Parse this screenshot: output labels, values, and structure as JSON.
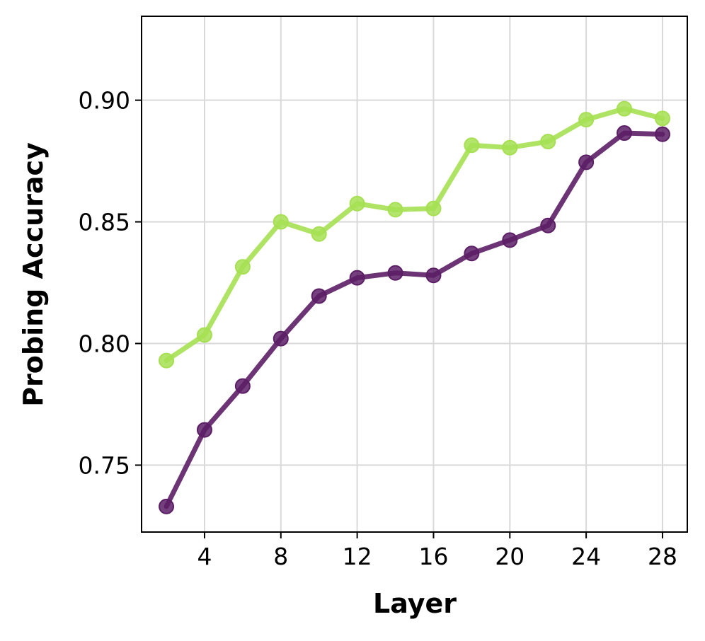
{
  "chart_data": {
    "type": "line",
    "title": "",
    "xlabel": "Layer",
    "ylabel": "Probing Accuracy",
    "xlim": [
      0.7,
      29.3
    ],
    "ylim": [
      0.7225,
      0.9345
    ],
    "xticks": [
      4,
      8,
      12,
      16,
      20,
      24,
      28
    ],
    "xtick_labels": [
      "4",
      "8",
      "12",
      "16",
      "20",
      "24",
      "28"
    ],
    "yticks": [
      0.75,
      0.8,
      0.85,
      0.9
    ],
    "ytick_labels": [
      "0.75",
      "0.80",
      "0.85",
      "0.90"
    ],
    "grid": true,
    "legend": "none",
    "x": [
      2,
      4,
      6,
      8,
      10,
      12,
      14,
      16,
      18,
      20,
      22,
      24,
      26,
      28
    ],
    "series": [
      {
        "color": "#a6e052",
        "values": [
          0.793,
          0.8035,
          0.8315,
          0.85,
          0.845,
          0.8575,
          0.855,
          0.8555,
          0.8815,
          0.8805,
          0.883,
          0.892,
          0.8965,
          0.8925
        ]
      },
      {
        "color": "#5c1e66",
        "values": [
          0.733,
          0.7645,
          0.7825,
          0.802,
          0.8195,
          0.827,
          0.829,
          0.828,
          0.837,
          0.8425,
          0.8485,
          0.8745,
          0.8865,
          0.886
        ]
      }
    ]
  }
}
